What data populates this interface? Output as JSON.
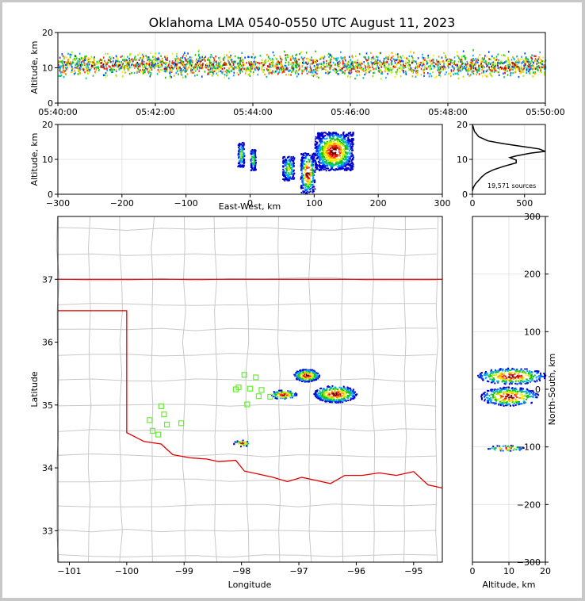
{
  "chart_data": [
    {
      "type": "heatmap",
      "panel": "altitude-time",
      "title": "Oklahoma LMA 0540-0550 UTC August 11, 2023",
      "ylabel": "Altitude, km",
      "xlabel": "",
      "xlim": [
        "05:40:00",
        "05:50:00"
      ],
      "ylim": [
        0,
        20
      ],
      "xticks": [
        "05:40:00",
        "05:42:00",
        "05:44:00",
        "05:46:00",
        "05:48:00",
        "05:50:00"
      ],
      "yticks": [
        "0",
        "10",
        "20"
      ],
      "density_profile": {
        "altitude_km": [
          3,
          6,
          9,
          11,
          13,
          15,
          17
        ],
        "weight": [
          0.1,
          0.35,
          0.8,
          1.0,
          0.9,
          0.45,
          0.1
        ]
      }
    },
    {
      "type": "heatmap",
      "panel": "altitude-east-west",
      "xlabel": "East-West, km",
      "ylabel": "Altitude, km",
      "xlim": [
        -300,
        300
      ],
      "ylim": [
        0,
        20
      ],
      "xticks": [
        "−300",
        "−200",
        "−100",
        "0",
        "100",
        "200",
        "300"
      ],
      "yticks": [
        "0",
        "10",
        "20"
      ],
      "clusters": [
        {
          "x_km": [
            -20,
            -10
          ],
          "alt_km": [
            8,
            15
          ]
        },
        {
          "x_km": [
            0,
            8
          ],
          "alt_km": [
            7,
            13
          ]
        },
        {
          "x_km": [
            50,
            68
          ],
          "alt_km": [
            4,
            11
          ]
        },
        {
          "x_km": [
            78,
            100
          ],
          "alt_km": [
            0.5,
            12
          ]
        },
        {
          "x_km": [
            100,
            160
          ],
          "alt_km": [
            7,
            18
          ]
        }
      ]
    },
    {
      "type": "line",
      "panel": "altitude-histogram",
      "xlim": [
        0,
        700
      ],
      "ylim": [
        0,
        20
      ],
      "xticks": [
        "0",
        "500"
      ],
      "yticks": [
        "0",
        "10",
        "20"
      ],
      "annotation": "19,571 sources",
      "x": [
        0,
        10,
        30,
        60,
        90,
        130,
        200,
        300,
        420,
        420,
        360,
        420,
        560,
        700,
        640,
        480,
        300,
        150,
        60,
        20,
        0
      ],
      "y": [
        1,
        2,
        3,
        4,
        5,
        6,
        7,
        8,
        9,
        9.8,
        10.5,
        11,
        11.8,
        12.3,
        13,
        13.7,
        14.5,
        15.3,
        16.5,
        18,
        20
      ]
    },
    {
      "type": "scatter",
      "panel": "plan-view-map",
      "xlabel": "Longitude",
      "ylabel": "Latitude",
      "xlim": [
        -101.2,
        -94.5
      ],
      "ylim": [
        32.5,
        38.0
      ],
      "xticks": [
        "−101",
        "−100",
        "−99",
        "−98",
        "−97",
        "−96",
        "−95"
      ],
      "yticks": [
        "33",
        "34",
        "35",
        "36",
        "37"
      ],
      "stations": {
        "lon": [
          -99.4,
          -99.6,
          -99.35,
          -99.3,
          -99.55,
          -99.45,
          -99.05,
          -97.95,
          -97.75,
          -98.05,
          -97.85,
          -97.65,
          -98.1,
          -97.7,
          -97.5,
          -97.9
        ],
        "lat": [
          34.98,
          34.76,
          34.85,
          34.69,
          34.59,
          34.53,
          34.71,
          35.48,
          35.44,
          35.28,
          35.26,
          35.24,
          35.25,
          35.14,
          35.13,
          35.01
        ]
      },
      "clusters": [
        {
          "lon": [
            -97.1,
            -96.65
          ],
          "lat": [
            35.38,
            35.58
          ]
        },
        {
          "lon": [
            -96.75,
            -96.0
          ],
          "lat": [
            35.05,
            35.32
          ]
        },
        {
          "lon": [
            -97.5,
            -97.05
          ],
          "lat": [
            35.1,
            35.25
          ]
        },
        {
          "lon": [
            -98.15,
            -97.85
          ],
          "lat": [
            34.35,
            34.45
          ]
        }
      ]
    },
    {
      "type": "heatmap",
      "panel": "north-south-altitude",
      "xlabel": "Altitude, km",
      "ylabel": "North-South, km",
      "xlim": [
        0,
        20
      ],
      "ylim": [
        -300,
        300
      ],
      "xticks": [
        "0",
        "10",
        "20"
      ],
      "yticks": [
        "−300",
        "−200",
        "−100",
        "0",
        "100",
        "200",
        "300"
      ],
      "clusters": [
        {
          "alt_km": [
            1,
            20
          ],
          "ns_km": [
            10,
            38
          ]
        },
        {
          "alt_km": [
            2,
            18
          ],
          "ns_km": [
            -28,
            5
          ]
        },
        {
          "alt_km": [
            4,
            14
          ],
          "ns_km": [
            -106,
            -96
          ]
        }
      ]
    }
  ]
}
